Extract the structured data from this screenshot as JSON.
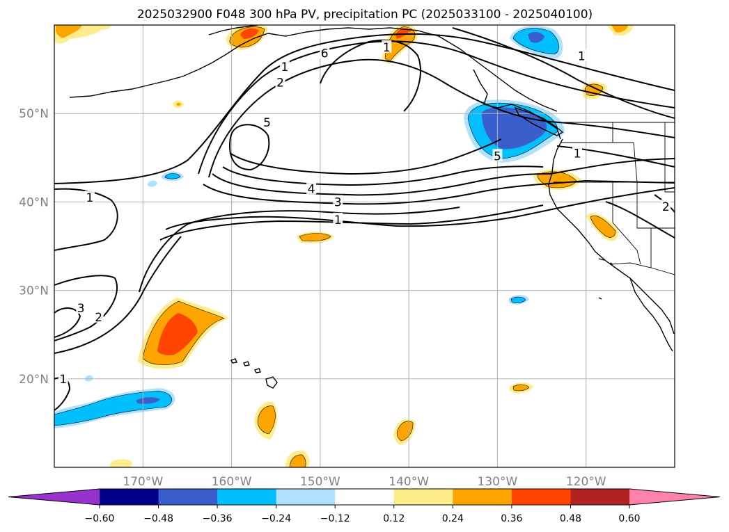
{
  "title": "2025032900 F048 300 hPa PV, precipitation PC (2025033100 - 2025040100)",
  "colors": {
    "coast": "#000000",
    "contour": "#000000",
    "grid": "#b0b0b0",
    "tick_label": "#808080"
  },
  "map": {
    "lon_min": -180,
    "lon_max": -110,
    "lat_min": 10,
    "lat_max": 60,
    "projection": "PlateCarree",
    "grid": true,
    "lon_ticks": [
      {
        "value": -170,
        "label": "170°W"
      },
      {
        "value": -160,
        "label": "160°W"
      },
      {
        "value": -150,
        "label": "150°W"
      },
      {
        "value": -140,
        "label": "140°W"
      },
      {
        "value": -130,
        "label": "130°W"
      },
      {
        "value": -120,
        "label": "120°W"
      }
    ],
    "lat_ticks": [
      {
        "value": 20,
        "label": "20°N"
      },
      {
        "value": 30,
        "label": "30°N"
      },
      {
        "value": 40,
        "label": "40°N"
      },
      {
        "value": 50,
        "label": "50°N"
      }
    ]
  },
  "pv_contour_labels": [
    {
      "text": "1",
      "lon": -176,
      "lat": 40.5
    },
    {
      "text": "1",
      "lon": -154,
      "lat": 55.3
    },
    {
      "text": "2",
      "lon": -154.5,
      "lat": 53.5
    },
    {
      "text": "5",
      "lon": -156,
      "lat": 49
    },
    {
      "text": "6",
      "lon": -149.5,
      "lat": 56.8
    },
    {
      "text": "1",
      "lon": -142.5,
      "lat": 57.5
    },
    {
      "text": "4",
      "lon": -151,
      "lat": 41.5
    },
    {
      "text": "3",
      "lon": -148,
      "lat": 40
    },
    {
      "text": "1",
      "lon": -148,
      "lat": 38
    },
    {
      "text": "5",
      "lon": -130,
      "lat": 45.2
    },
    {
      "text": "1",
      "lon": -121,
      "lat": 45.5
    },
    {
      "text": "1",
      "lon": -120.5,
      "lat": 56.5
    },
    {
      "text": "2",
      "lon": -111,
      "lat": 39.5
    },
    {
      "text": "2",
      "lon": -175,
      "lat": 27
    },
    {
      "text": "3",
      "lon": -177,
      "lat": 28
    },
    {
      "text": "1",
      "lon": -179,
      "lat": 20
    }
  ],
  "colorbar": {
    "ticks": [
      "−0.60",
      "−0.48",
      "−0.36",
      "−0.24",
      "−0.12",
      "0.12",
      "0.24",
      "0.36",
      "0.48",
      "0.60"
    ],
    "colors": [
      "#9932cc",
      "#00008b",
      "#3a5fcd",
      "#00bfff",
      "#b0e2ff",
      "#ffffff",
      "#ffec8b",
      "#ffa500",
      "#ff4500",
      "#b22222",
      "#ff82ab"
    ]
  }
}
